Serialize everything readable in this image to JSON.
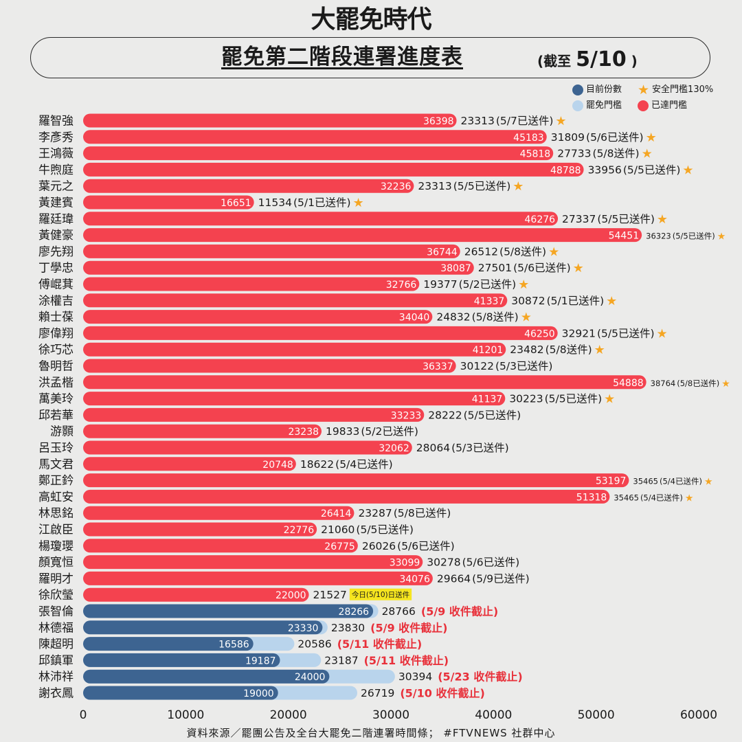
{
  "brand": "大罷免時代",
  "title": "罷免第二階段連署進度表",
  "subtitle_prefix": "(截至",
  "subtitle_date": "5/10",
  "subtitle_suffix": ")",
  "legend": {
    "current": "目前份數",
    "threshold": "罷免門檻",
    "safe": "安全門檻130%",
    "reached": "已達門檻"
  },
  "colors": {
    "reached": "#f4424f",
    "current": "#3d6491",
    "threshold": "#b9d4ec",
    "star": "#f5a623",
    "highlight": "#f6e51f",
    "deadline": "#e8303a"
  },
  "source": "資料來源／罷團公告及全台大罷免二階連署時間條； #FTVNEWS 社群中心",
  "chart_data": {
    "type": "bar",
    "orientation": "horizontal",
    "xlim": [
      0,
      60000
    ],
    "xticks": [
      "0",
      "10000",
      "20000",
      "30000",
      "40000",
      "50000",
      "60000"
    ],
    "grid": false,
    "rows": [
      {
        "name": "羅智強",
        "count": 36398,
        "threshold": 23313,
        "note": "(5/7已送件)",
        "star": true,
        "reached": true
      },
      {
        "name": "李彥秀",
        "count": 45183,
        "threshold": 31809,
        "note": "(5/6已送件)",
        "star": true,
        "reached": true
      },
      {
        "name": "王鴻薇",
        "count": 45818,
        "threshold": 27733,
        "note": "(5/8送件)",
        "star": true,
        "reached": true
      },
      {
        "name": "牛煦庭",
        "count": 48788,
        "threshold": 33956,
        "note": "(5/5已送件)",
        "star": true,
        "reached": true
      },
      {
        "name": "葉元之",
        "count": 32236,
        "threshold": 23313,
        "note": "(5/5已送件)",
        "star": true,
        "reached": true
      },
      {
        "name": "黃建賓",
        "count": 16651,
        "threshold": 11534,
        "note": "(5/1已送件)",
        "star": true,
        "reached": true
      },
      {
        "name": "羅廷瑋",
        "count": 46276,
        "threshold": 27337,
        "note": "(5/5已送件)",
        "star": true,
        "reached": true
      },
      {
        "name": "黃健豪",
        "count": 54451,
        "threshold": 36323,
        "note": "(5/5已送件)",
        "star": true,
        "reached": true,
        "small": true
      },
      {
        "name": "廖先翔",
        "count": 36744,
        "threshold": 26512,
        "note": "(5/8送件)",
        "star": true,
        "reached": true
      },
      {
        "name": "丁學忠",
        "count": 38087,
        "threshold": 27501,
        "note": "(5/6已送件)",
        "star": true,
        "reached": true
      },
      {
        "name": "傅崐萁",
        "count": 32766,
        "threshold": 19377,
        "note": "(5/2已送件)",
        "star": true,
        "reached": true
      },
      {
        "name": "涂權吉",
        "count": 41337,
        "threshold": 30872,
        "note": "(5/1已送件)",
        "star": true,
        "reached": true
      },
      {
        "name": "賴士葆",
        "count": 34040,
        "threshold": 24832,
        "note": "(5/8送件)",
        "star": true,
        "reached": true
      },
      {
        "name": "廖偉翔",
        "count": 46250,
        "threshold": 32921,
        "note": "(5/5已送件)",
        "star": true,
        "reached": true
      },
      {
        "name": "徐巧芯",
        "count": 41201,
        "threshold": 23482,
        "note": "(5/8送件)",
        "star": true,
        "reached": true
      },
      {
        "name": "魯明哲",
        "count": 36337,
        "threshold": 30122,
        "note": "(5/3已送件)",
        "star": false,
        "reached": true
      },
      {
        "name": "洪孟楷",
        "count": 54888,
        "threshold": 38764,
        "note": "(5/8已送件)",
        "star": true,
        "reached": true,
        "small": true
      },
      {
        "name": "萬美玲",
        "count": 41137,
        "threshold": 30223,
        "note": "(5/5已送件)",
        "star": true,
        "reached": true
      },
      {
        "name": "邱若華",
        "count": 33233,
        "threshold": 28222,
        "note": "(5/5已送件)",
        "star": false,
        "reached": true
      },
      {
        "name": "游顥",
        "count": 23238,
        "threshold": 19833,
        "note": "(5/2已送件)",
        "star": false,
        "reached": true
      },
      {
        "name": "呂玉玲",
        "count": 32062,
        "threshold": 28064,
        "note": "(5/3已送件)",
        "star": false,
        "reached": true
      },
      {
        "name": "馬文君",
        "count": 20748,
        "threshold": 18622,
        "note": "(5/4已送件)",
        "star": false,
        "reached": true
      },
      {
        "name": "鄭正鈐",
        "count": 53197,
        "threshold": 35465,
        "note": "(5/4已送件)",
        "star": true,
        "reached": true,
        "small": true
      },
      {
        "name": "高虹安",
        "count": 51318,
        "threshold": 35465,
        "note": "(5/4已送件)",
        "star": true,
        "reached": true,
        "small": true
      },
      {
        "name": "林思銘",
        "count": 26414,
        "threshold": 23287,
        "note": "(5/8已送件)",
        "star": false,
        "reached": true
      },
      {
        "name": "江啟臣",
        "count": 22776,
        "threshold": 21060,
        "note": "(5/5已送件)",
        "star": false,
        "reached": true
      },
      {
        "name": "楊瓊瓔",
        "count": 26775,
        "threshold": 26026,
        "note": "(5/6已送件)",
        "star": false,
        "reached": true
      },
      {
        "name": "顏寬恒",
        "count": 33099,
        "threshold": 30278,
        "note": "(5/6已送件)",
        "star": false,
        "reached": true
      },
      {
        "name": "羅明才",
        "count": 34076,
        "threshold": 29664,
        "note": "(5/9已送件)",
        "star": false,
        "reached": true
      },
      {
        "name": "徐欣瑩",
        "count": 22000,
        "threshold": 21527,
        "note": "今日(5/10)日送件",
        "star": false,
        "reached": true,
        "highlight": true
      },
      {
        "name": "張智倫",
        "count": 28266,
        "threshold": 28766,
        "note": "(5/9 收件截止)",
        "star": false,
        "reached": false
      },
      {
        "name": "林德福",
        "count": 23330,
        "threshold": 23830,
        "note": "(5/9 收件截止)",
        "star": false,
        "reached": false
      },
      {
        "name": "陳超明",
        "count": 16586,
        "threshold": 20586,
        "note": "(5/11 收件截止)",
        "star": false,
        "reached": false
      },
      {
        "name": "邱鎮軍",
        "count": 19187,
        "threshold": 23187,
        "note": "(5/11 收件截止)",
        "star": false,
        "reached": false
      },
      {
        "name": "林沛祥",
        "count": 24000,
        "threshold": 30394,
        "note": "(5/23 收件截止)",
        "star": false,
        "reached": false
      },
      {
        "name": "謝衣鳳",
        "count": 19000,
        "threshold": 26719,
        "note": "(5/10 收件截止)",
        "star": false,
        "reached": false
      }
    ]
  }
}
